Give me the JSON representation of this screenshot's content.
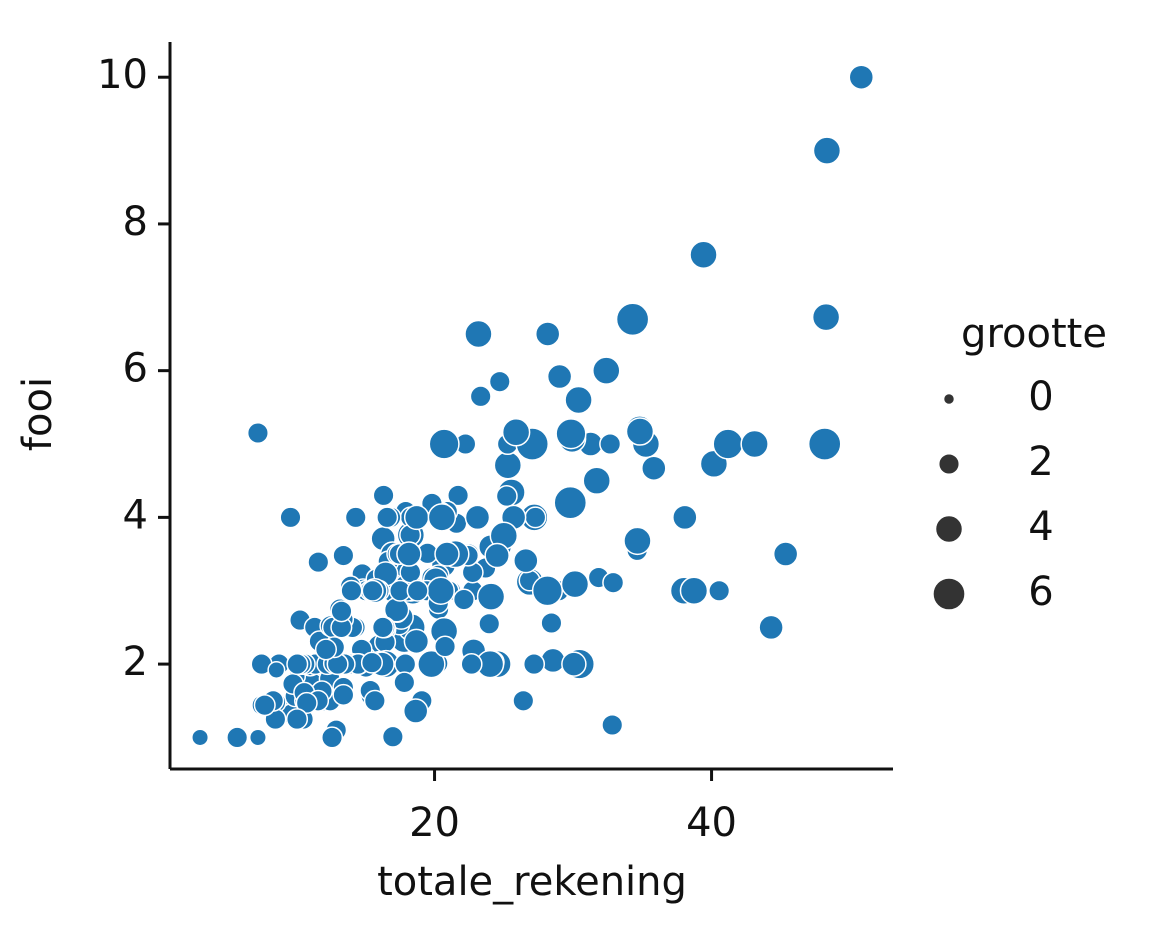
{
  "chart_data": {
    "type": "scatter",
    "x_label": "totale_rekening",
    "y_label": "fooi",
    "legend_title": "grootte",
    "size_legend": [
      0,
      2,
      4,
      6
    ],
    "legend_position": "right",
    "color": "#1f77b4",
    "xlim": [
      0.9,
      53.1
    ],
    "xticks": [
      20,
      40
    ],
    "ylim": [
      0.57,
      10.48
    ],
    "yticks": [
      2,
      4,
      6,
      8,
      10
    ],
    "x": [
      16.99,
      10.34,
      21.01,
      23.68,
      24.59,
      25.29,
      8.77,
      26.88,
      15.04,
      14.78,
      10.27,
      35.26,
      15.42,
      18.43,
      14.83,
      21.58,
      10.33,
      16.29,
      16.97,
      20.65,
      17.92,
      20.29,
      15.77,
      39.42,
      19.82,
      17.81,
      13.37,
      12.69,
      21.7,
      19.65,
      9.55,
      18.35,
      15.06,
      20.69,
      17.78,
      24.06,
      16.31,
      16.93,
      18.69,
      31.27,
      16.04,
      17.46,
      13.94,
      9.68,
      30.4,
      18.29,
      22.23,
      32.4,
      28.55,
      18.04,
      12.54,
      10.29,
      34.81,
      9.94,
      25.56,
      19.49,
      38.01,
      26.41,
      11.24,
      48.27,
      20.29,
      13.81,
      11.02,
      18.29,
      17.59,
      20.08,
      16.45,
      3.07,
      20.23,
      15.01,
      12.02,
      17.07,
      26.86,
      25.28,
      14.73,
      10.51,
      17.92,
      27.2,
      22.76,
      17.29,
      19.44,
      16.66,
      10.07,
      32.68,
      15.98,
      34.83,
      13.03,
      18.28,
      24.71,
      21.16,
      28.97,
      22.49,
      5.75,
      16.32,
      22.75,
      40.17,
      27.28,
      12.03,
      21.01,
      12.46,
      11.35,
      15.38,
      44.3,
      22.42,
      20.92,
      15.36,
      20.49,
      25.21,
      18.24,
      14.31,
      14.0,
      7.25,
      38.07,
      23.95,
      25.71,
      17.31,
      29.93,
      10.65,
      12.43,
      24.08,
      11.69,
      13.42,
      14.26,
      15.95,
      12.48,
      29.8,
      8.52,
      14.52,
      11.38,
      22.82,
      19.08,
      20.27,
      11.17,
      12.26,
      18.26,
      8.51,
      10.33,
      14.15,
      16.0,
      13.16,
      17.47,
      34.3,
      41.19,
      27.05,
      16.43,
      8.35,
      18.64,
      11.87,
      9.78,
      7.51,
      14.07,
      13.13,
      17.26,
      24.55,
      19.77,
      29.85,
      48.17,
      25.0,
      13.39,
      16.49,
      21.5,
      12.66,
      16.21,
      13.81,
      17.51,
      24.52,
      20.76,
      31.71,
      10.59,
      10.63,
      50.81,
      15.81,
      7.25,
      31.85,
      16.82,
      32.9,
      17.89,
      14.48,
      9.6,
      34.63,
      34.65,
      23.33,
      45.35,
      23.17,
      40.55,
      20.69,
      20.9,
      30.46,
      18.15,
      23.1,
      15.69,
      19.81,
      28.44,
      15.48,
      16.58,
      7.56,
      10.34,
      43.11,
      13.0,
      13.51,
      18.71,
      12.74,
      13.0,
      16.4,
      20.53,
      16.47,
      26.59,
      38.73,
      24.27,
      12.76,
      30.06,
      25.89,
      48.33,
      13.27,
      28.17,
      12.9,
      28.15,
      11.59,
      7.74,
      30.14,
      12.16,
      13.42,
      8.58,
      15.98,
      13.42,
      16.27,
      10.09,
      20.45,
      13.28,
      22.12,
      24.01,
      15.69,
      11.61,
      10.77,
      15.53,
      10.07,
      12.6,
      32.83,
      35.83,
      29.03,
      27.18,
      22.67,
      17.82,
      18.78
    ],
    "y": [
      1.01,
      1.66,
      3.5,
      3.31,
      3.61,
      4.71,
      2.0,
      3.12,
      1.96,
      3.23,
      1.71,
      5.0,
      1.57,
      3.0,
      3.02,
      3.92,
      1.67,
      3.71,
      3.5,
      3.35,
      4.08,
      2.75,
      2.23,
      7.58,
      3.18,
      2.34,
      2.0,
      2.0,
      4.3,
      3.0,
      1.45,
      2.5,
      3.0,
      2.45,
      3.27,
      3.6,
      2.0,
      3.07,
      2.31,
      5.0,
      2.24,
      2.54,
      3.06,
      1.32,
      5.6,
      3.0,
      5.0,
      6.0,
      2.05,
      3.0,
      2.5,
      2.6,
      5.2,
      1.56,
      4.34,
      3.51,
      3.0,
      1.5,
      1.76,
      6.73,
      3.21,
      2.0,
      1.98,
      3.76,
      2.64,
      3.15,
      2.47,
      1.0,
      2.01,
      2.09,
      1.97,
      3.0,
      3.14,
      5.0,
      2.2,
      1.25,
      3.08,
      4.0,
      3.0,
      2.71,
      3.0,
      3.4,
      1.83,
      5.0,
      2.03,
      5.17,
      2.0,
      4.0,
      5.85,
      3.0,
      3.0,
      3.5,
      1.0,
      4.3,
      3.25,
      4.73,
      4.0,
      1.5,
      3.0,
      1.5,
      2.5,
      3.0,
      2.5,
      3.48,
      4.08,
      1.64,
      4.06,
      4.29,
      3.76,
      4.0,
      3.0,
      1.0,
      4.0,
      2.55,
      4.0,
      3.5,
      5.07,
      1.5,
      1.8,
      2.92,
      2.31,
      1.68,
      2.5,
      2.0,
      2.52,
      4.2,
      1.48,
      2.0,
      2.0,
      2.18,
      1.5,
      2.83,
      1.5,
      2.0,
      3.25,
      1.25,
      2.0,
      2.0,
      2.0,
      2.75,
      3.5,
      6.7,
      5.0,
      5.0,
      2.3,
      1.5,
      1.36,
      1.63,
      1.73,
      2.0,
      2.5,
      2.0,
      2.74,
      2.0,
      2.0,
      5.14,
      5.0,
      3.75,
      2.61,
      2.0,
      3.5,
      2.5,
      2.0,
      2.0,
      3.0,
      3.48,
      2.24,
      4.5,
      1.61,
      2.0,
      10.0,
      3.16,
      5.15,
      3.18,
      4.0,
      3.11,
      2.0,
      2.0,
      4.0,
      3.55,
      3.68,
      5.65,
      3.5,
      6.5,
      3.0,
      5.0,
      3.5,
      2.0,
      3.5,
      4.0,
      1.5,
      4.19,
      2.56,
      2.02,
      4.0,
      1.44,
      2.0,
      5.0,
      2.0,
      2.0,
      4.0,
      2.01,
      2.0,
      2.5,
      4.0,
      3.23,
      3.41,
      3.0,
      2.03,
      2.23,
      2.0,
      5.16,
      9.0,
      2.5,
      6.5,
      1.1,
      3.0,
      1.5,
      1.44,
      3.09,
      2.2,
      3.48,
      1.92,
      3.0,
      1.58,
      2.5,
      2.0,
      3.0,
      2.72,
      2.88,
      2.0,
      3.0,
      3.39,
      1.47,
      3.0,
      1.25,
      1.0,
      1.17,
      4.67,
      5.92,
      2.0,
      2.0,
      1.75,
      3.0
    ],
    "sizes": [
      2,
      3,
      3,
      2,
      4,
      4,
      2,
      4,
      2,
      2,
      2,
      4,
      2,
      4,
      2,
      2,
      3,
      3,
      3,
      3,
      2,
      2,
      2,
      4,
      2,
      4,
      2,
      2,
      2,
      2,
      2,
      4,
      2,
      4,
      2,
      3,
      3,
      3,
      3,
      3,
      3,
      2,
      2,
      2,
      4,
      2,
      2,
      4,
      3,
      2,
      2,
      2,
      4,
      2,
      4,
      2,
      4,
      2,
      2,
      4,
      2,
      2,
      2,
      4,
      3,
      3,
      2,
      1,
      2,
      2,
      2,
      3,
      2,
      2,
      2,
      2,
      2,
      4,
      2,
      2,
      2,
      2,
      1,
      2,
      2,
      4,
      2,
      2,
      2,
      2,
      2,
      2,
      2,
      2,
      2,
      4,
      2,
      2,
      2,
      2,
      2,
      2,
      3,
      2,
      2,
      2,
      2,
      2,
      2,
      2,
      2,
      1,
      3,
      2,
      3,
      2,
      4,
      2,
      2,
      4,
      2,
      2,
      2,
      2,
      2,
      6,
      2,
      2,
      2,
      3,
      2,
      2,
      2,
      2,
      2,
      2,
      2,
      2,
      2,
      2,
      2,
      6,
      5,
      6,
      2,
      2,
      3,
      2,
      2,
      2,
      2,
      2,
      3,
      4,
      4,
      5,
      6,
      4,
      2,
      4,
      4,
      2,
      3,
      2,
      2,
      3,
      2,
      4,
      2,
      2,
      3,
      2,
      2,
      2,
      2,
      2,
      2,
      2,
      2,
      2,
      4,
      2,
      3,
      4,
      2,
      5,
      3,
      5,
      3,
      3,
      2,
      2,
      2,
      2,
      2,
      2,
      2,
      4,
      2,
      2,
      3,
      2,
      2,
      2,
      4,
      3,
      3,
      4,
      2,
      2,
      3,
      4,
      4,
      2,
      3,
      2,
      5,
      2,
      2,
      4,
      2,
      2,
      1,
      2,
      2,
      2,
      2,
      4,
      2,
      2,
      4,
      3,
      2,
      2,
      2,
      2,
      2,
      2,
      3,
      3,
      2,
      2,
      2,
      2
    ]
  }
}
